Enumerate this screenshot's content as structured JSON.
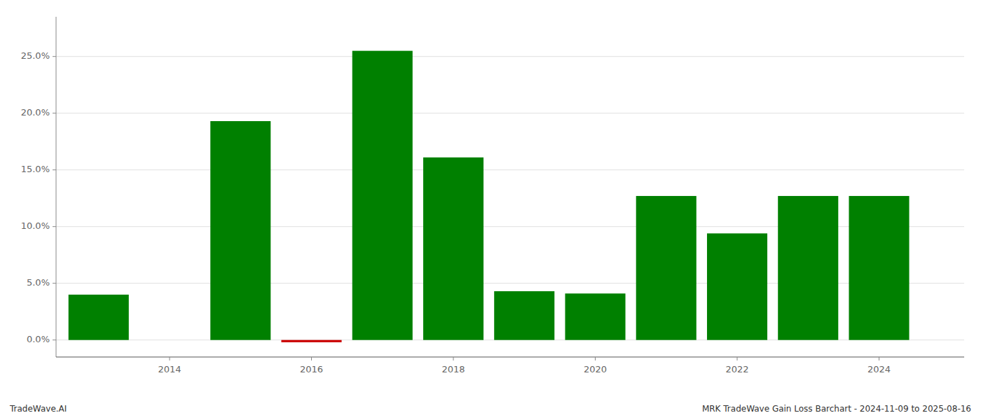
{
  "chart_data": {
    "type": "bar",
    "x": [
      2013,
      2015,
      2016,
      2017,
      2018,
      2019,
      2020,
      2021,
      2022,
      2023,
      2024
    ],
    "values": [
      0.04,
      0.193,
      -0.002,
      0.255,
      0.161,
      0.043,
      0.041,
      0.127,
      0.094,
      0.127,
      0.127
    ],
    "colors": [
      "#008000",
      "#008000",
      "#cc0000",
      "#008000",
      "#008000",
      "#008000",
      "#008000",
      "#008000",
      "#008000",
      "#008000",
      "#008000"
    ],
    "xlim": [
      2012.4,
      2025.2
    ],
    "xticks": [
      2014,
      2016,
      2018,
      2020,
      2022,
      2024
    ],
    "ylim": [
      -0.015,
      0.285
    ],
    "yticks": [
      {
        "value": 0.0,
        "label": "0.0%"
      },
      {
        "value": 0.05,
        "label": "5.0%"
      },
      {
        "value": 0.1,
        "label": "10.0%"
      },
      {
        "value": 0.15,
        "label": "15.0%"
      },
      {
        "value": 0.2,
        "label": "20.0%"
      },
      {
        "value": 0.25,
        "label": "25.0%"
      }
    ],
    "grid": true,
    "annotations": [
      "TradeWave.AI",
      "MRK TradeWave Gain Loss Barchart - 2024-11-09 to 2025-08-16"
    ]
  }
}
